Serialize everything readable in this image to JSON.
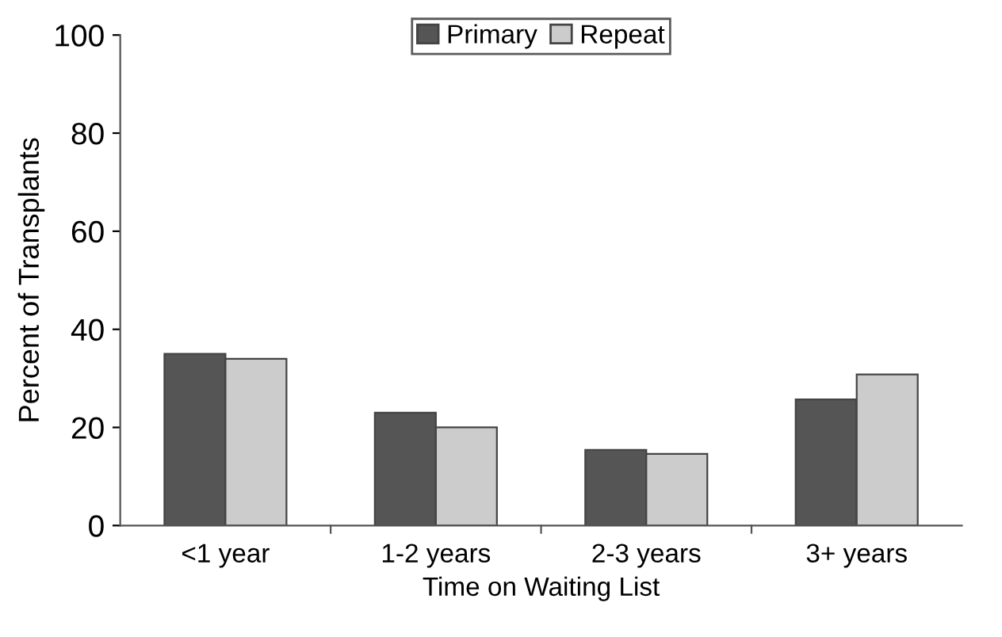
{
  "chart_data": {
    "type": "bar",
    "xlabel": "Time on Waiting List",
    "ylabel": "Percent of Transplants",
    "categories": [
      "<1 year",
      "1-2 years",
      "2-3 years",
      "3+ years"
    ],
    "series": [
      {
        "name": "Primary",
        "color": "#555555",
        "values": [
          35,
          23,
          15.4,
          25.7
        ]
      },
      {
        "name": "Repeat",
        "color": "#cccccc",
        "values": [
          34,
          20,
          14.6,
          30.8
        ]
      }
    ],
    "ylim": [
      0,
      100
    ],
    "yticks": [
      0,
      20,
      40,
      60,
      80,
      100
    ],
    "grid": false,
    "legend": "top"
  }
}
